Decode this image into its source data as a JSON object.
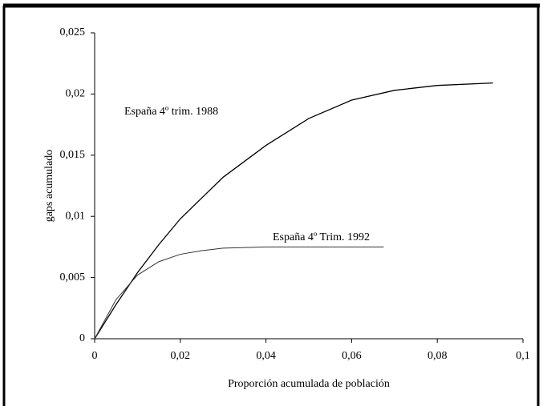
{
  "chart_data": {
    "type": "line",
    "xlabel": "Proporción acumulada de población",
    "ylabel": "gaps acumulado",
    "series": [
      {
        "name": "España 4º trim. 1988",
        "color": "#000000",
        "x": [
          0,
          0.005,
          0.01,
          0.015,
          0.02,
          0.03,
          0.04,
          0.05,
          0.06,
          0.07,
          0.08,
          0.093
        ],
        "values": [
          0,
          0.0028,
          0.0054,
          0.0077,
          0.0098,
          0.0132,
          0.0158,
          0.018,
          0.0195,
          0.0203,
          0.0207,
          0.0209
        ]
      },
      {
        "name": "España 4º Trim. 1992",
        "color": "#333333",
        "x": [
          0,
          0.005,
          0.01,
          0.015,
          0.02,
          0.025,
          0.03,
          0.04,
          0.05,
          0.0675
        ],
        "values": [
          0,
          0.0032,
          0.0052,
          0.0063,
          0.0069,
          0.0072,
          0.0074,
          0.0075,
          0.0075,
          0.0075
        ]
      }
    ],
    "xlim": [
      0,
      0.1
    ],
    "xticks": [
      0,
      {
        "value": 0.02,
        "label": "0,02"
      },
      {
        "value": 0.04,
        "label": "0,04"
      },
      {
        "value": 0.06,
        "label": "0,06"
      },
      {
        "value": 0.08,
        "label": "0,08"
      },
      {
        "value": 0.1,
        "label": "0,1"
      }
    ],
    "ylim": [
      0,
      0.025
    ],
    "yticks": [
      0,
      {
        "value": 0.005,
        "label": "0,005"
      },
      {
        "value": 0.01,
        "label": "0,01"
      },
      {
        "value": 0.015,
        "label": "0,015"
      },
      {
        "value": 0.02,
        "label": "0,02"
      },
      {
        "value": 0.025,
        "label": "0,025"
      }
    ],
    "grid": false
  }
}
